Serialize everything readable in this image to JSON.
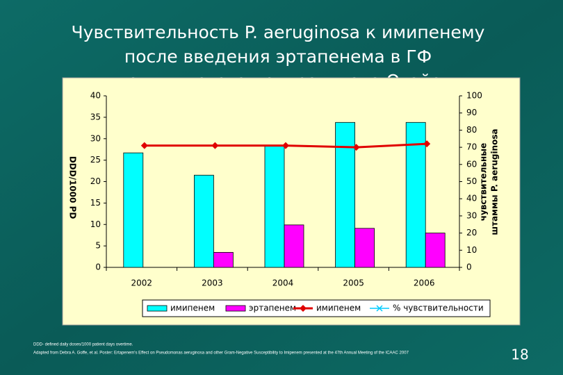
{
  "chart_data": {
    "type": "bar",
    "title": [
      "Чувствительность P. aeruginosa  к имипенему",
      "после введения эртапенема в ГФ",
      "медицинского центра штата Огайо"
    ],
    "categories": [
      "2002",
      "2003",
      "2004",
      "2005",
      "2006"
    ],
    "series": [
      {
        "name": "имипенем",
        "color": "#00ffff",
        "type": "bar",
        "values": [
          26.7,
          21.5,
          28.5,
          33.8,
          33.8
        ]
      },
      {
        "name": "эртапенем",
        "color": "#ff00ff",
        "type": "bar",
        "values": [
          0,
          3.5,
          9.9,
          9.1,
          8.0
        ]
      },
      {
        "name": "имипенем",
        "color": "#e00000",
        "type": "line",
        "axis": "y2",
        "values": [
          71,
          71,
          71,
          70,
          72
        ]
      },
      {
        "name": "% чувствительности",
        "color": "#00ccff",
        "type": "line",
        "axis": "y2",
        "values": [
          null,
          null,
          null,
          null,
          null
        ]
      }
    ],
    "ylabel": "DDD/1000 PD",
    "y2label": [
      "чувствительные",
      "штаммы P. aeruginosa"
    ],
    "ylim": [
      0,
      40
    ],
    "yticks": [
      0,
      5,
      10,
      15,
      20,
      25,
      30,
      35,
      40
    ],
    "y2lim": [
      0,
      100
    ],
    "y2ticks": [
      0,
      10,
      20,
      30,
      40,
      50,
      60,
      70,
      80,
      90,
      100
    ],
    "legend": "bottom",
    "notes": [
      "DDD- defined daily doses/1000 patient days overtime.",
      "Adapted from Debra A. Goffe, et al. Poster: Ertapenem's Effect on Pseudomonas aeruginosa and other Gram-Negative Susceptibility to Imipenem presented at the 47th Annual Meeting of the ICAAC 2007"
    ],
    "page_number": "18"
  }
}
